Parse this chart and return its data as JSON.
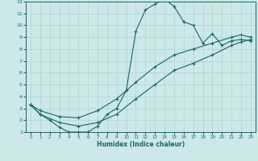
{
  "xlabel": "Humidex (Indice chaleur)",
  "bg_color": "#cce8e8",
  "grid_color": "#b0d4d4",
  "line_color": "#1a6666",
  "xlim": [
    -0.5,
    23.5
  ],
  "ylim": [
    1,
    12
  ],
  "xticks": [
    0,
    1,
    2,
    3,
    4,
    5,
    6,
    7,
    8,
    9,
    10,
    11,
    12,
    13,
    14,
    15,
    16,
    17,
    18,
    19,
    20,
    21,
    22,
    23
  ],
  "yticks": [
    1,
    2,
    3,
    4,
    5,
    6,
    7,
    8,
    9,
    10,
    11,
    12
  ],
  "line1_x": [
    0,
    1,
    2,
    3,
    4,
    5,
    6,
    7,
    8,
    9,
    10,
    11,
    12,
    13,
    14,
    15,
    16,
    17,
    18,
    19,
    20,
    21,
    22,
    23
  ],
  "line1_y": [
    3.3,
    2.5,
    2.0,
    1.4,
    1.0,
    1.0,
    1.0,
    1.5,
    2.5,
    3.0,
    4.5,
    9.5,
    11.3,
    11.8,
    12.2,
    11.6,
    10.3,
    10.0,
    8.5,
    9.3,
    8.3,
    8.7,
    8.8,
    8.7
  ],
  "line2_x": [
    0,
    1,
    3,
    5,
    7,
    9,
    11,
    13,
    15,
    17,
    19,
    21,
    22,
    23
  ],
  "line2_y": [
    3.3,
    2.8,
    2.3,
    2.2,
    2.8,
    3.8,
    5.2,
    6.5,
    7.5,
    8.0,
    8.5,
    9.0,
    9.2,
    9.0
  ],
  "line3_x": [
    0,
    1,
    3,
    5,
    7,
    9,
    11,
    13,
    15,
    17,
    19,
    21,
    22,
    23
  ],
  "line3_y": [
    3.3,
    2.5,
    1.8,
    1.5,
    1.8,
    2.5,
    3.8,
    5.0,
    6.2,
    6.8,
    7.5,
    8.3,
    8.6,
    8.8
  ]
}
